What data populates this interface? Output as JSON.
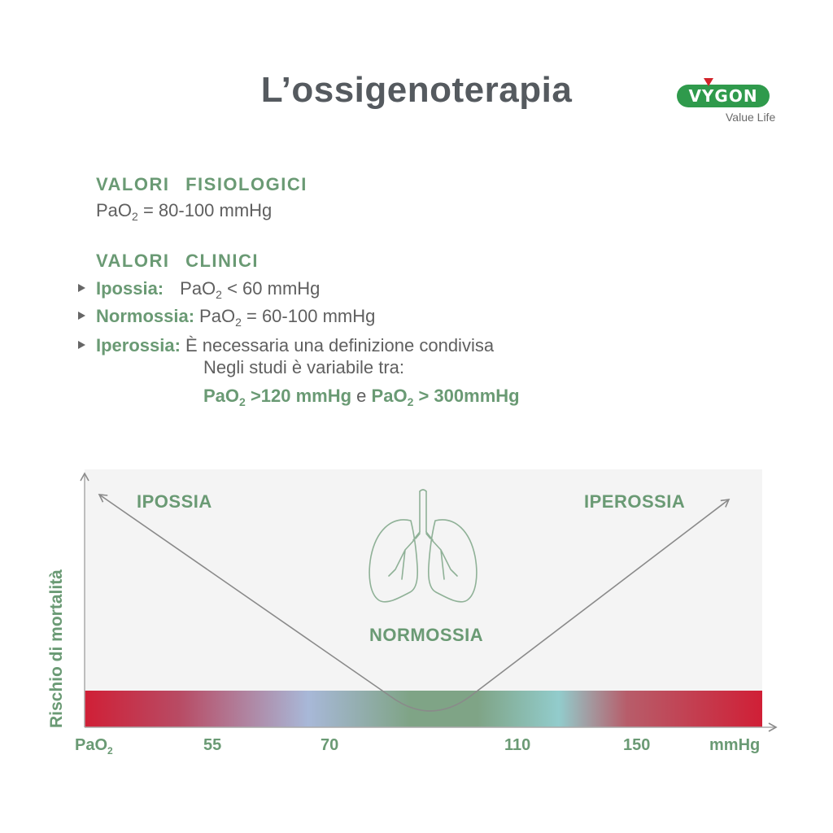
{
  "header": {
    "title": "L’ossigenoterapia",
    "logo": {
      "brand": "VYGON",
      "tagline": "Value Life",
      "pill_color": "#2f9a4c",
      "mark_color": "#d2232a"
    }
  },
  "physiological": {
    "heading": "VALORI FISIOLOGICI",
    "pao2_prefix": "PaO",
    "pao2_sub": "2",
    "value_text": " = 80-100 mmHg"
  },
  "clinical": {
    "heading": "VALORI CLINICI",
    "items": [
      {
        "label": "Ipossia:",
        "prefix": "PaO",
        "sub": "2",
        "text": " < 60 mmHg"
      },
      {
        "label": "Normossia:",
        "prefix": "PaO",
        "sub": "2",
        "text": " = 60-100 mmHg"
      },
      {
        "label": "Iperossia:",
        "text": "È necessaria una  definizione condivisa",
        "line2": "Negli studi è variabile tra:",
        "range": {
          "a_prefix": "PaO",
          "a_sub": "2",
          "a_text": " >120 mmHg",
          "connector": " e ",
          "b_prefix": "PaO",
          "b_sub": "2",
          "b_text": " > 300mmHg"
        }
      }
    ]
  },
  "diagram": {
    "y_axis_label": "Rischio di mortalità",
    "zones": {
      "left": "IPOSSIA",
      "center": "NORMOSSIA",
      "right": "IPEROSSIA"
    },
    "x_axis": {
      "first_prefix": "PaO",
      "first_sub": "2",
      "ticks": [
        "55",
        "70",
        "110",
        "150"
      ],
      "unit": "mmHg"
    },
    "accent_color": "#6a9a74",
    "gradient_colors": [
      "#d01f36",
      "#a8b8d8",
      "#7fa486",
      "#92cccc",
      "#d01f36"
    ]
  }
}
